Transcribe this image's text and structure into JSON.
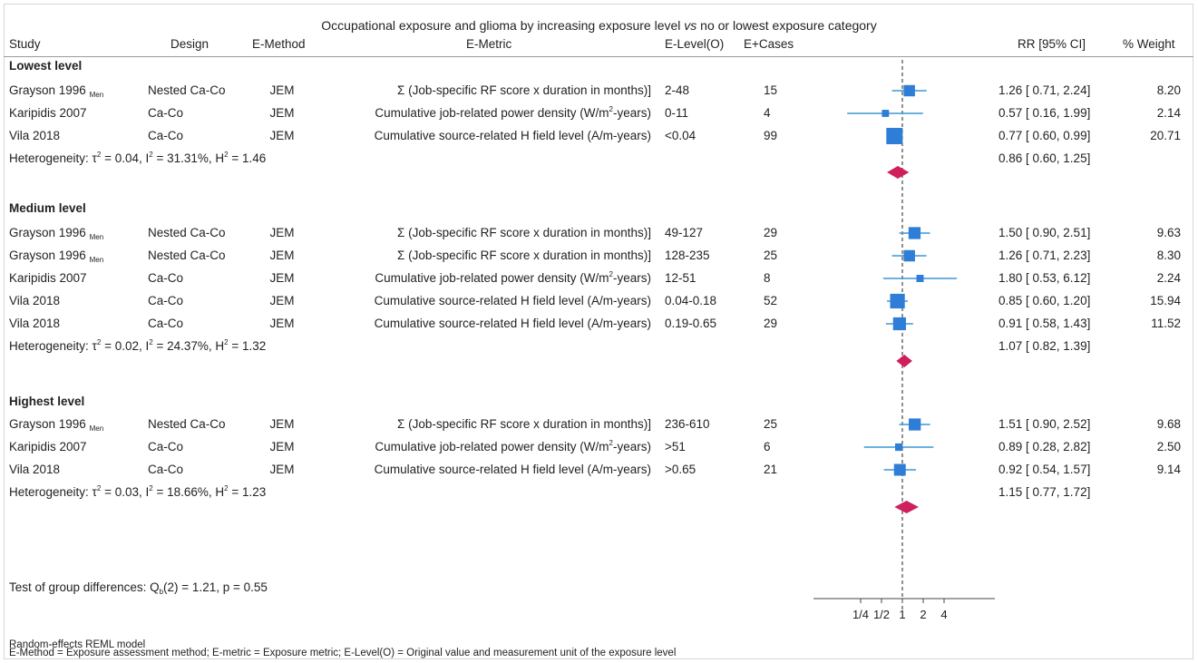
{
  "title_prefix": "Occupational exposure and glioma by increasing exposure level ",
  "title_vs": "vs",
  "title_suffix": " no or lowest exposure category",
  "headers": {
    "study": "Study",
    "design": "Design",
    "emethod": "E-Method",
    "emetric": "E-Metric",
    "elevel": "E-Level(O)",
    "ecases": "E+Cases",
    "rr": "RR [95% CI]",
    "weight": "% Weight"
  },
  "sections": [
    {
      "label": "Lowest level",
      "rows": [
        {
          "study": "Grayson 1996",
          "sub": "Men",
          "design": "Nested Ca-Co",
          "emethod": "JEM",
          "emetric": "Σ (Job-specific RF score x duration in months)]",
          "emetric_sup": "",
          "emetric_tail": "",
          "elevel": "2-48",
          "cases": "15",
          "rr_text": "1.26 [ 0.71,  2.24]",
          "weight": "8.20"
        },
        {
          "study": "Karipidis 2007",
          "sub": "",
          "design": "Ca-Co",
          "emethod": "JEM",
          "emetric": "Cumulative job-related power density (W/m",
          "emetric_sup": "2",
          "emetric_tail": "-years)",
          "elevel": "0-11",
          "cases": "4",
          "rr_text": "0.57 [ 0.16,  1.99]",
          "weight": "2.14"
        },
        {
          "study": "Vila 2018",
          "sub": "",
          "design": "Ca-Co",
          "emethod": "JEM",
          "emetric": "Cumulative source-related H field level (A/m-years)",
          "emetric_sup": "",
          "emetric_tail": "",
          "elevel": "<0.04",
          "cases": "99",
          "rr_text": "0.77 [ 0.60,  0.99]",
          "weight": "20.71"
        }
      ],
      "het": {
        "prefix": "Heterogeneity: τ",
        "a": " = 0.04, I",
        "b": " = 31.31%, H",
        "c": " = 1.46",
        "sq": "2"
      },
      "pooled_text": "0.86 [ 0.60,  1.25]"
    },
    {
      "label": "Medium level",
      "rows": [
        {
          "study": "Grayson 1996",
          "sub": "Men",
          "design": "Nested Ca-Co",
          "emethod": "JEM",
          "emetric": "Σ (Job-specific RF score x duration in months)]",
          "emetric_sup": "",
          "emetric_tail": "",
          "elevel": "49-127",
          "cases": "29",
          "rr_text": "1.50 [ 0.90,  2.51]",
          "weight": "9.63"
        },
        {
          "study": "Grayson 1996",
          "sub": "Men",
          "design": "Nested Ca-Co",
          "emethod": "JEM",
          "emetric": "Σ (Job-specific RF score x duration in months)]",
          "emetric_sup": "",
          "emetric_tail": "",
          "elevel": "128-235",
          "cases": "25",
          "rr_text": "1.26 [ 0.71,  2.23]",
          "weight": "8.30"
        },
        {
          "study": "Karipidis 2007",
          "sub": "",
          "design": "Ca-Co",
          "emethod": "JEM",
          "emetric": "Cumulative job-related power density (W/m",
          "emetric_sup": "2",
          "emetric_tail": "-years)",
          "elevel": "12-51",
          "cases": "8",
          "rr_text": "1.80 [ 0.53,  6.12]",
          "weight": "2.24"
        },
        {
          "study": "Vila 2018",
          "sub": "",
          "design": "Ca-Co",
          "emethod": "JEM",
          "emetric": "Cumulative source-related H field level (A/m-years)",
          "emetric_sup": "",
          "emetric_tail": "",
          "elevel": "0.04-0.18",
          "cases": "52",
          "rr_text": "0.85 [ 0.60,  1.20]",
          "weight": "15.94"
        },
        {
          "study": "Vila 2018",
          "sub": "",
          "design": "Ca-Co",
          "emethod": "JEM",
          "emetric": "Cumulative source-related H field level (A/m-years)",
          "emetric_sup": "",
          "emetric_tail": "",
          "elevel": "0.19-0.65",
          "cases": "29",
          "rr_text": "0.91 [ 0.58,  1.43]",
          "weight": "11.52"
        }
      ],
      "het": {
        "prefix": "Heterogeneity: τ",
        "a": " = 0.02, I",
        "b": " = 24.37%, H",
        "c": " = 1.32",
        "sq": "2"
      },
      "pooled_text": "1.07 [ 0.82,  1.39]"
    },
    {
      "label": "Highest level",
      "rows": [
        {
          "study": "Grayson 1996",
          "sub": "Men",
          "design": "Nested Ca-Co",
          "emethod": "JEM",
          "emetric": "Σ (Job-specific RF score x duration in months)]",
          "emetric_sup": "",
          "emetric_tail": "",
          "elevel": "236-610",
          "cases": "25",
          "rr_text": "1.51 [ 0.90,  2.52]",
          "weight": "9.68"
        },
        {
          "study": "Karipidis 2007",
          "sub": "",
          "design": "Ca-Co",
          "emethod": "JEM",
          "emetric": "Cumulative job-related power density (W/m",
          "emetric_sup": "2",
          "emetric_tail": "-years)",
          "elevel": ">51",
          "cases": "6",
          "rr_text": "0.89 [ 0.28,  2.82]",
          "weight": "2.50"
        },
        {
          "study": "Vila 2018",
          "sub": "",
          "design": "Ca-Co",
          "emethod": "JEM",
          "emetric": "Cumulative source-related H field level (A/m-years)",
          "emetric_sup": "",
          "emetric_tail": "",
          "elevel": ">0.65",
          "cases": "21",
          "rr_text": "0.92 [ 0.54,  1.57]",
          "weight": "9.14"
        }
      ],
      "het": {
        "prefix": "Heterogeneity: τ",
        "a": " = 0.03, I",
        "b": " = 18.66%, H",
        "c": " = 1.23",
        "sq": "2"
      },
      "pooled_text": "1.15 [ 0.77,  1.72]"
    }
  ],
  "test": {
    "prefix": "Test of group differences: Q",
    "sub": "b",
    "suffix": "(2) = 1.21, p = 0.55"
  },
  "footnotes": [
    "Random-effects REML model",
    "E-Method = Exposure assessment method; E-metric = Exposure metric; E-Level(O) = Original value and measurement unit of the exposure level"
  ],
  "colors": {
    "marker": "#2e7dd6",
    "ci_line": "#3d97d3",
    "diamond": "#cf1f5c",
    "ref_line": "#222222"
  },
  "chart_data": {
    "type": "forest",
    "scale": "log",
    "reference_line": 1,
    "xticks": [
      0.25,
      0.5,
      1,
      2,
      4
    ],
    "xtick_labels": [
      "1/4",
      "1/2",
      "1",
      "2",
      "4"
    ],
    "series": [
      {
        "name": "Lowest level",
        "studies": [
          {
            "rr": 1.26,
            "lo": 0.71,
            "hi": 2.24,
            "weight": 8.2
          },
          {
            "rr": 0.57,
            "lo": 0.16,
            "hi": 1.99,
            "weight": 2.14
          },
          {
            "rr": 0.77,
            "lo": 0.6,
            "hi": 0.99,
            "weight": 20.71
          }
        ],
        "pooled": {
          "rr": 0.86,
          "lo": 0.6,
          "hi": 1.25
        }
      },
      {
        "name": "Medium level",
        "studies": [
          {
            "rr": 1.5,
            "lo": 0.9,
            "hi": 2.51,
            "weight": 9.63
          },
          {
            "rr": 1.26,
            "lo": 0.71,
            "hi": 2.23,
            "weight": 8.3
          },
          {
            "rr": 1.8,
            "lo": 0.53,
            "hi": 6.12,
            "weight": 2.24
          },
          {
            "rr": 0.85,
            "lo": 0.6,
            "hi": 1.2,
            "weight": 15.94
          },
          {
            "rr": 0.91,
            "lo": 0.58,
            "hi": 1.43,
            "weight": 11.52
          }
        ],
        "pooled": {
          "rr": 1.07,
          "lo": 0.82,
          "hi": 1.39
        }
      },
      {
        "name": "Highest level",
        "studies": [
          {
            "rr": 1.51,
            "lo": 0.9,
            "hi": 2.52,
            "weight": 9.68
          },
          {
            "rr": 0.89,
            "lo": 0.28,
            "hi": 2.82,
            "weight": 2.5
          },
          {
            "rr": 0.92,
            "lo": 0.54,
            "hi": 1.57,
            "weight": 9.14
          }
        ],
        "pooled": {
          "rr": 1.15,
          "lo": 0.77,
          "hi": 1.72
        }
      }
    ]
  }
}
